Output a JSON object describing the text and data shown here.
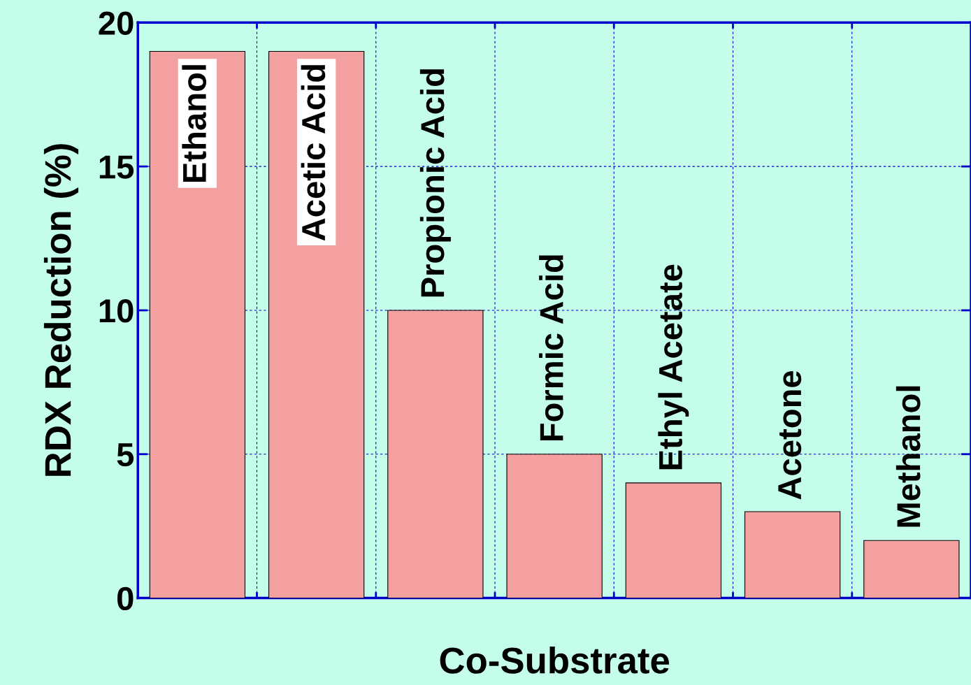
{
  "chart_data": {
    "type": "bar",
    "xlabel": "Co-Substrate",
    "ylabel": "RDX Reduction (%)",
    "categories": [
      "Ethanol",
      "Acetic Acid",
      "Propionic Acid",
      "Formic Acid",
      "Ethyl Acetate",
      "Acetone",
      "Methanol"
    ],
    "values": [
      19,
      19,
      10,
      5,
      4,
      3,
      2
    ],
    "color": "#f4a0a0",
    "ylim": [
      0,
      20
    ],
    "yticks": [
      0,
      5,
      10,
      15,
      20
    ],
    "grid": true,
    "tick_labels": "y"
  }
}
